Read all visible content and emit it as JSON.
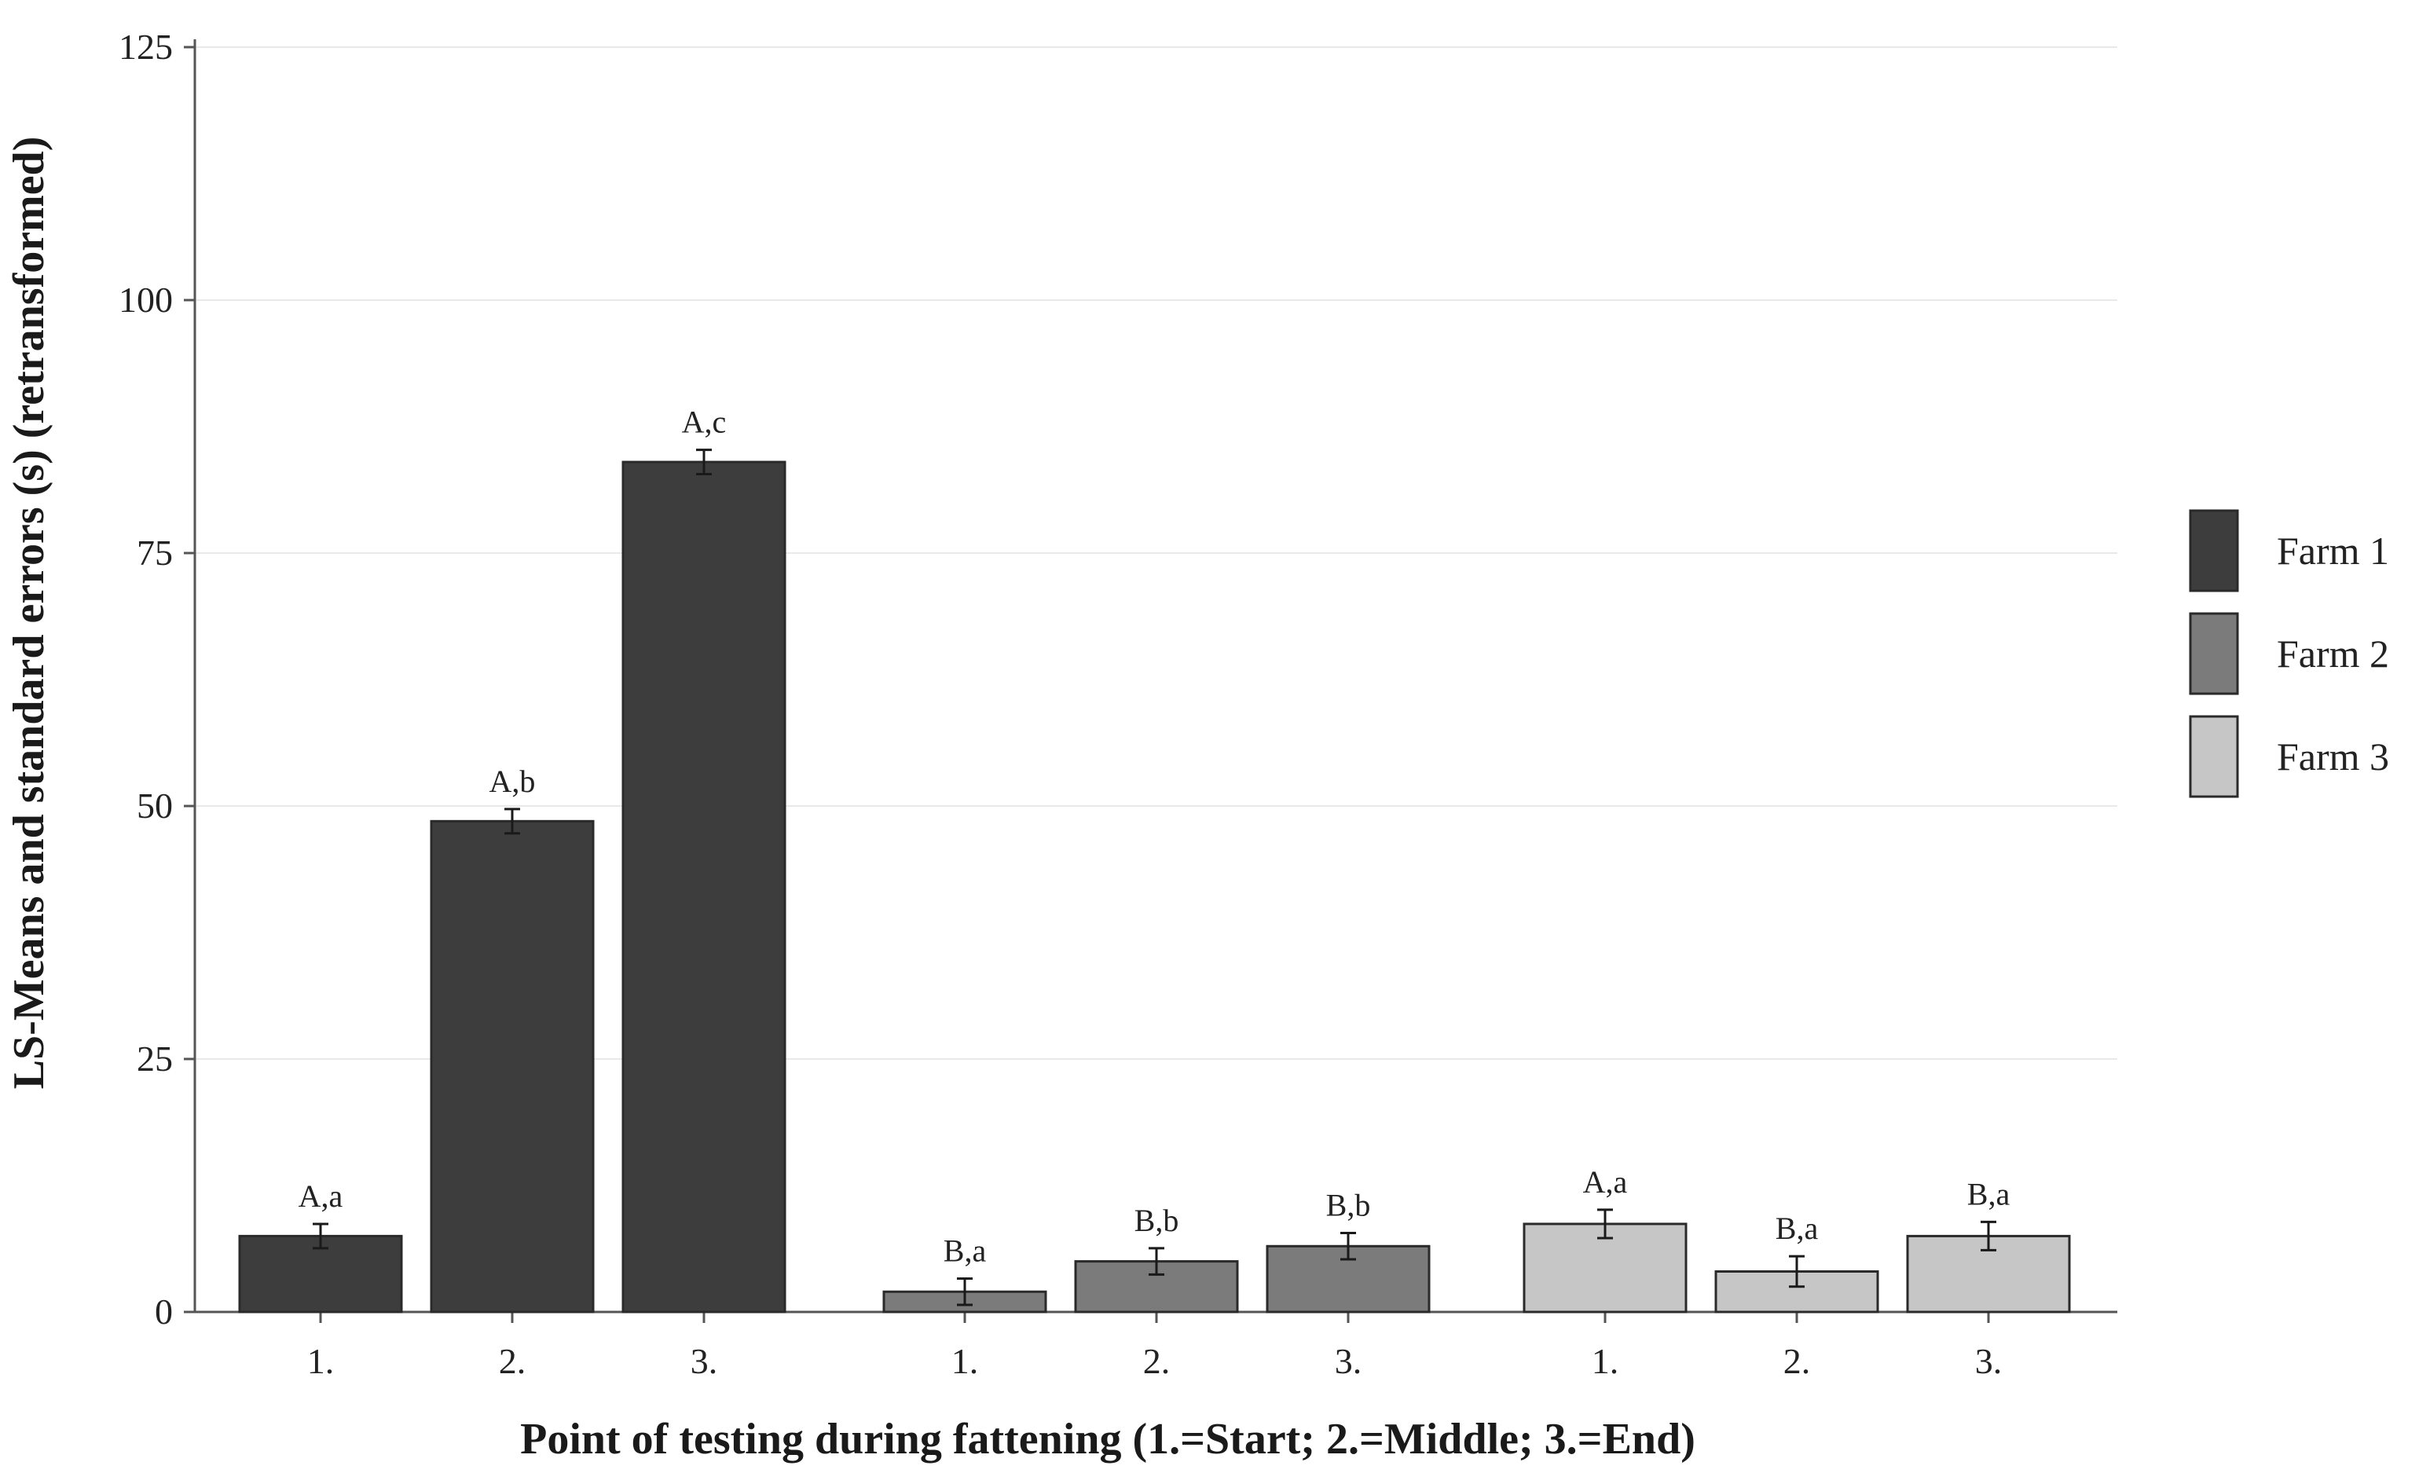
{
  "chart_data": {
    "type": "bar",
    "title": "",
    "xlabel": "Point of testing during fattening (1.=Start; 2.=Middle; 3.=End)",
    "ylabel": "LS-Means and standard errors (s) (retransformed)",
    "ylim": [
      0,
      125
    ],
    "yticks": [
      "0",
      "25",
      "50",
      "75",
      "100",
      "125"
    ],
    "grid": true,
    "legend_position": "right",
    "series": [
      {
        "name": "Farm 1",
        "color": "#3d3d3d",
        "categories": [
          "1.",
          "2.",
          "3."
        ],
        "values": [
          7.5,
          48.5,
          84
        ],
        "errors": [
          1.2,
          1.2,
          1.2
        ],
        "labels": [
          "A,a",
          "A,b",
          "A,c"
        ]
      },
      {
        "name": "Farm 2",
        "color": "#7b7b7b",
        "categories": [
          "1.",
          "2.",
          "3."
        ],
        "values": [
          2,
          5,
          6.5
        ],
        "errors": [
          1.3,
          1.3,
          1.3
        ],
        "labels": [
          "B,a",
          "B,b",
          "B,b"
        ]
      },
      {
        "name": "Farm 3",
        "color": "#c6c6c6",
        "categories": [
          "1.",
          "2.",
          "3."
        ],
        "values": [
          8.7,
          4,
          7.5
        ],
        "errors": [
          1.4,
          1.5,
          1.4
        ],
        "labels": [
          "A,a",
          "B,a",
          "B,a"
        ]
      }
    ]
  }
}
